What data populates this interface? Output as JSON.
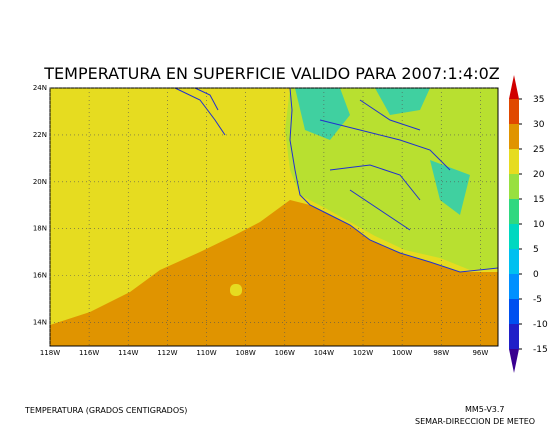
{
  "title": "TEMPERATURA EN SUPERFICIE VALIDO PARA 2007:1:4:0Z",
  "map": {
    "xlim": [
      -118,
      -95.1
    ],
    "ylim": [
      13,
      24
    ],
    "xticks": [
      {
        "value": -118,
        "label": "118W"
      },
      {
        "value": -116,
        "label": "116W"
      },
      {
        "value": -114,
        "label": "114W"
      },
      {
        "value": -112,
        "label": "112W"
      },
      {
        "value": -110,
        "label": "110W"
      },
      {
        "value": -108,
        "label": "108W"
      },
      {
        "value": -106,
        "label": "106W"
      },
      {
        "value": -104,
        "label": "104W"
      },
      {
        "value": -102,
        "label": "102W"
      },
      {
        "value": -100,
        "label": "100W"
      },
      {
        "value": -98,
        "label": "98W"
      },
      {
        "value": -96,
        "label": "96W"
      }
    ],
    "yticks": [
      {
        "value": 24,
        "label": "24N"
      },
      {
        "value": 22,
        "label": "22N"
      },
      {
        "value": 20,
        "label": "20N"
      },
      {
        "value": 18,
        "label": "18N"
      },
      {
        "value": 16,
        "label": "16N"
      },
      {
        "value": 14,
        "label": "14N"
      }
    ],
    "grid": true
  },
  "colorbar": {
    "lim": [
      -15,
      35
    ],
    "ticks": [
      -15,
      -10,
      -5,
      0,
      5,
      10,
      15,
      20,
      25,
      30,
      35
    ],
    "under_color": "#3a0090",
    "over_color": "#d00000",
    "colors": [
      "#2020c8",
      "#0050f0",
      "#0090ff",
      "#00c0f0",
      "#00d8c0",
      "#30d880",
      "#98e040",
      "#e6dc20",
      "#e09400",
      "#e04800"
    ]
  },
  "footer": {
    "left": "TEMPERATURA (GRADOS CENTIGRADOS)",
    "model": "MM5-V3.7",
    "agency": "SEMAR-DIRECCION DE METEO"
  }
}
